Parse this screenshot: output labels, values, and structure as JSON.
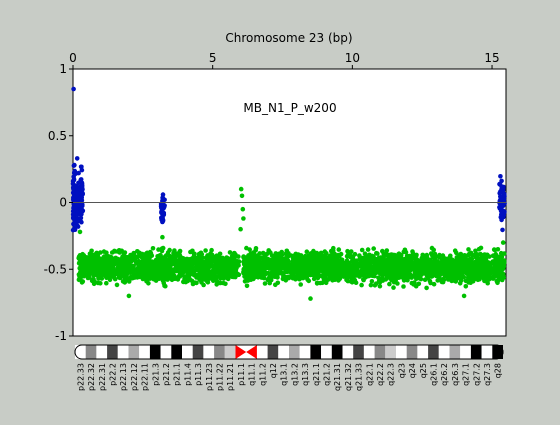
{
  "chart_data": {
    "type": "scatter",
    "title": "Chromosome 23 (bp)",
    "annotation": "MB_N1_P_w200",
    "xlabel_units": "Mb",
    "xlim": [
      0,
      15.5
    ],
    "ylim": [
      -1,
      1
    ],
    "x_ticks": [
      0,
      5,
      10,
      15
    ],
    "x_tick_labels": [
      "0",
      "5",
      "10",
      "15"
    ],
    "y_ticks": [
      -1,
      -0.5,
      0,
      0.5,
      1
    ],
    "y_tick_labels": [
      "-1",
      "-0.5",
      "0",
      "0.5",
      "1"
    ],
    "reference_line_y": 0,
    "grid": false,
    "series": [
      {
        "color": "#0010c0",
        "clusters": [
          {
            "x_range": [
              0.0,
              0.35
            ],
            "y_range": [
              -0.3,
              0.33
            ],
            "count": 160
          },
          {
            "x_range": [
              3.15,
              3.28
            ],
            "y_range": [
              -0.22,
              0.15
            ],
            "count": 30
          },
          {
            "x_range": [
              15.25,
              15.45
            ],
            "y_range": [
              -0.25,
              0.27
            ],
            "count": 50
          }
        ],
        "outliers": [
          [
            0.02,
            0.85
          ],
          [
            0.05,
            0.28
          ],
          [
            0.15,
            0.33
          ]
        ]
      },
      {
        "color": "#00c000",
        "clusters": [
          {
            "x_range": [
              0.2,
              5.95
            ],
            "y_range": [
              -0.65,
              -0.32
            ],
            "count": 1300
          },
          {
            "x_range": [
              6.1,
              15.45
            ],
            "y_range": [
              -0.65,
              -0.32
            ],
            "count": 2100
          }
        ],
        "outliers": [
          [
            6.02,
            0.1
          ],
          [
            6.05,
            0.05
          ],
          [
            6.08,
            -0.05
          ],
          [
            6.1,
            -0.12
          ],
          [
            6.0,
            -0.2
          ],
          [
            3.2,
            -0.26
          ],
          [
            0.25,
            -0.22
          ],
          [
            15.4,
            -0.3
          ],
          [
            2.0,
            -0.7
          ],
          [
            8.5,
            -0.72
          ],
          [
            14.0,
            -0.7
          ]
        ]
      }
    ]
  },
  "ideogram": {
    "bands": [
      "p22.33",
      "p22.32",
      "p22.31",
      "p22.2",
      "p22.13",
      "p22.12",
      "p22.11",
      "p21.3",
      "p21.2",
      "p21.1",
      "p11.4",
      "p11.3",
      "p11.23",
      "p11.22",
      "p11.21",
      "p11.1",
      "q11.1",
      "q11.2",
      "q12",
      "q13.1",
      "q13.2",
      "q13.3",
      "q21.1",
      "q21.2",
      "q21.31",
      "q21.32",
      "q21.33",
      "q22.1",
      "q22.2",
      "q22.3",
      "q23",
      "q24",
      "q25",
      "q26.1",
      "q26.2",
      "q26.3",
      "q27.1",
      "q27.2",
      "q27.3",
      "q28"
    ]
  }
}
